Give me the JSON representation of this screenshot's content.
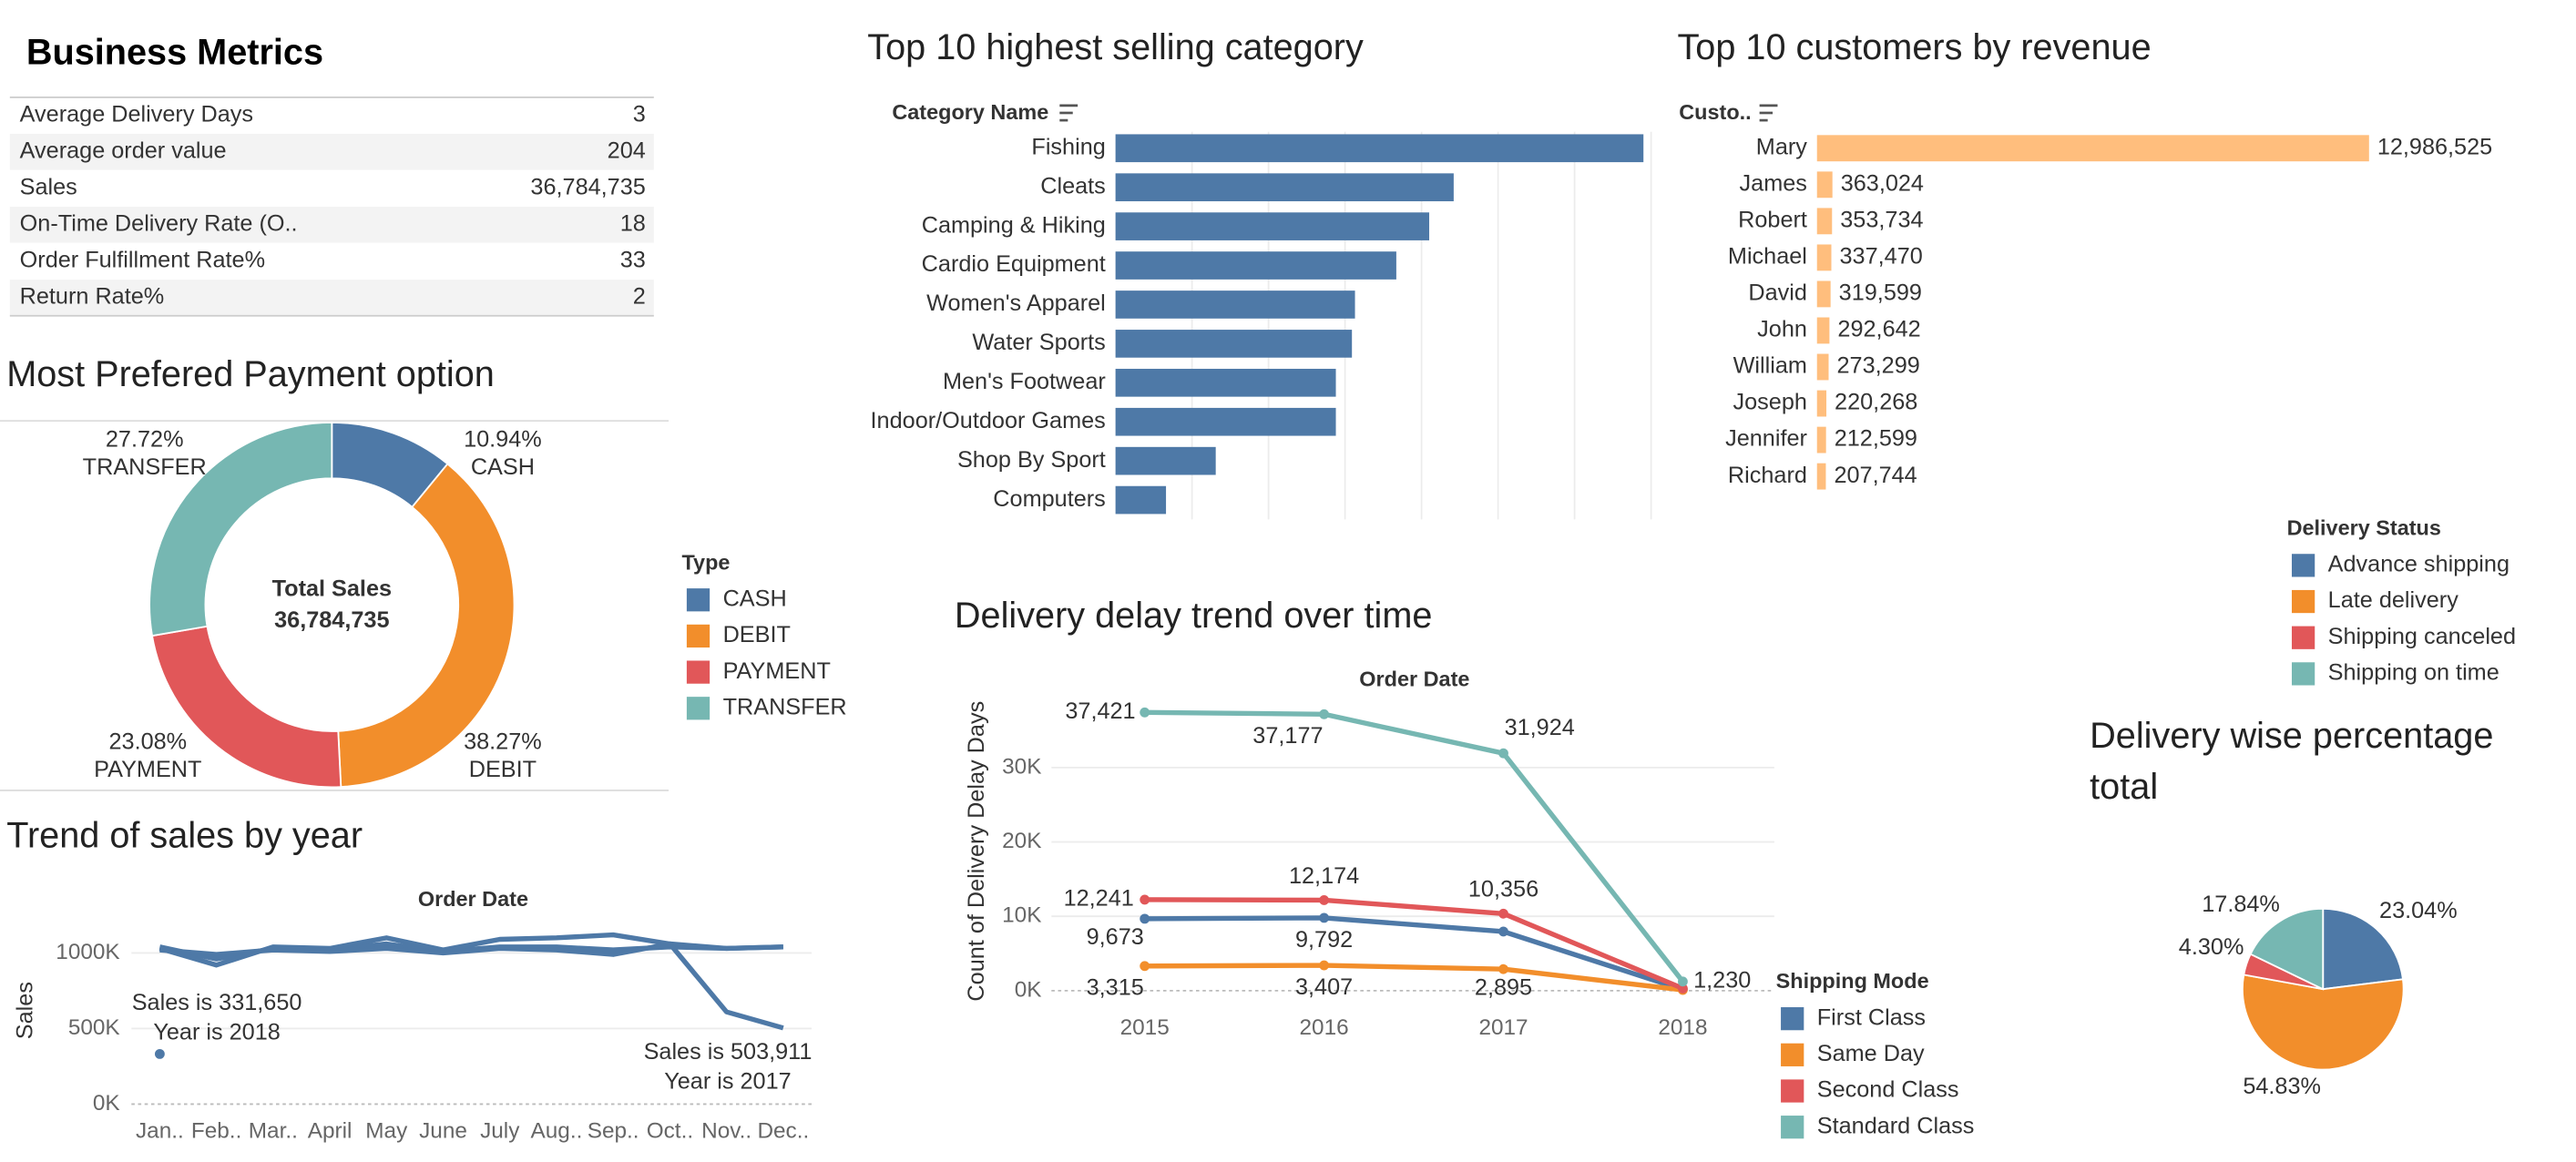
{
  "metrics": {
    "title": "Business Metrics",
    "rows": [
      [
        "Average Delivery Days",
        "3"
      ],
      [
        "Average order value",
        "204"
      ],
      [
        "Sales",
        "36,784,735"
      ],
      [
        "On-Time Delivery Rate (O..",
        "18"
      ],
      [
        "Order Fulfillment Rate%",
        "33"
      ],
      [
        "Return Rate%",
        "2"
      ]
    ]
  },
  "chart_data": [
    {
      "type": "pie",
      "title": "Most Prefered Payment option",
      "categories": [
        "CASH",
        "DEBIT",
        "PAYMENT",
        "TRANSFER"
      ],
      "values": [
        10.94,
        38.27,
        23.08,
        27.72
      ],
      "value_labels": [
        "10.94%",
        "38.27%",
        "23.08%",
        "27.72%"
      ],
      "colors": [
        "#4e79a7",
        "#f28e2b",
        "#e15759",
        "#76b7b2"
      ],
      "donut": true,
      "legend_title": "Type",
      "center_label": "Total Sales",
      "center_value": "36,784,735"
    },
    {
      "type": "line",
      "title": "Trend of sales by year",
      "x_label": "Order Date",
      "y_label": "Sales",
      "categories": [
        "Jan..",
        "Feb..",
        "Mar..",
        "April",
        "May",
        "June",
        "July",
        "Aug..",
        "Sep..",
        "Oct..",
        "Nov..",
        "Dec.."
      ],
      "series": [
        {
          "color": "#4e79a7",
          "values": [
            1040000,
            960000,
            1030000,
            1020000,
            1060000,
            1010000,
            1040000,
            1040000,
            1020000,
            1040000,
            1030000,
            1040000
          ]
        },
        {
          "color": "#4e79a7",
          "values": [
            1030000,
            920000,
            1040000,
            1030000,
            1100000,
            1020000,
            1090000,
            1100000,
            1120000,
            1060000,
            1030000,
            1040000
          ]
        },
        {
          "color": "#4e79a7",
          "values": [
            1020000,
            990000,
            1020000,
            1010000,
            1030000,
            1000000,
            1030000,
            1020000,
            990000,
            1060000,
            610000,
            503911
          ]
        },
        {
          "color": "#4e79a7",
          "values": [
            331650,
            null,
            null,
            null,
            null,
            null,
            null,
            null,
            null,
            null,
            null,
            null
          ]
        }
      ],
      "ylim": [
        -87000,
        1217000
      ],
      "yticks": [
        {
          "value": 0,
          "label": "0K"
        },
        {
          "value": 500000,
          "label": "500K"
        },
        {
          "value": 1000000,
          "label": "1000K"
        }
      ],
      "grid": true,
      "annotations": [
        [
          "Sales is 331,650",
          "Year is 2018"
        ],
        [
          "Sales is 503,911",
          "Year is 2017"
        ]
      ]
    },
    {
      "type": "hbar",
      "title": "Top 10 highest selling category",
      "y_label": "Category Name",
      "categories": [
        "Fishing",
        "Cleats",
        "Camping & Hiking",
        "Cardio Equipment",
        "Women's Apparel",
        "Water Sports",
        "Men's Footwear",
        "Indoor/Outdoor Games",
        "Shop By Sport",
        "Computers"
      ],
      "values": [
        6900000,
        4420000,
        4100000,
        3670000,
        3130000,
        3090000,
        2880000,
        2880000,
        1310000,
        660000
      ],
      "color": "#4e79a7",
      "xlim": [
        0,
        7150000
      ],
      "xticks": [
        1000000,
        2000000,
        3000000,
        4000000,
        5000000,
        6000000,
        7000000
      ],
      "grid": true
    },
    {
      "type": "hbar",
      "title": "Top 10 customers by revenue",
      "y_label": "Custo..",
      "categories": [
        "Mary",
        "James",
        "Robert",
        "Michael",
        "David",
        "John",
        "William",
        "Joseph",
        "Jennifer",
        "Richard"
      ],
      "values": [
        12986525,
        363024,
        353734,
        337470,
        319599,
        292642,
        273299,
        220268,
        212599,
        207744
      ],
      "value_labels": [
        "12,986,525",
        "363,024",
        "353,734",
        "337,470",
        "319,599",
        "292,642",
        "273,299",
        "220,268",
        "212,599",
        "207,744"
      ],
      "color": "#ffbe7d",
      "xlim": [
        0,
        16000000
      ]
    },
    {
      "type": "line",
      "title": "Delivery delay trend over time",
      "x_label": "Order Date",
      "y_label": "Count of Delivery Delay Days",
      "x": [
        2015,
        2016,
        2017,
        2018
      ],
      "xlim": [
        2014.48,
        2018.51
      ],
      "xticks": [
        2015,
        2016,
        2017,
        2018
      ],
      "ylim": [
        -900,
        39300
      ],
      "yticks": [
        {
          "value": 0,
          "label": "0K"
        },
        {
          "value": 10000,
          "label": "10K"
        },
        {
          "value": 20000,
          "label": "20K"
        },
        {
          "value": 30000,
          "label": "30K"
        }
      ],
      "grid": true,
      "markers": true,
      "legend_title": "Shipping Mode",
      "series": [
        {
          "name": "First Class",
          "color": "#4e79a7",
          "values": [
            9673,
            9792,
            7950,
            150
          ],
          "value_labels": [
            "9,673",
            "9,792",
            null,
            null
          ]
        },
        {
          "name": "Same Day",
          "color": "#f28e2b",
          "values": [
            3315,
            3407,
            2895,
            100
          ],
          "value_labels": [
            "3,315",
            "3,407",
            "2,895",
            null
          ]
        },
        {
          "name": "Second Class",
          "color": "#e15759",
          "values": [
            12241,
            12174,
            10356,
            300
          ],
          "value_labels": [
            "12,241",
            "12,174",
            "10,356",
            null
          ]
        },
        {
          "name": "Standard Class",
          "color": "#76b7b2",
          "values": [
            37421,
            37177,
            31924,
            1230
          ],
          "value_labels": [
            "37,421",
            "37,177",
            "31,924",
            "1,230"
          ]
        }
      ]
    },
    {
      "type": "pie",
      "title": "Delivery wise percentage total",
      "categories": [
        "Advance shipping",
        "Late delivery",
        "Shipping canceled",
        "Shipping on time"
      ],
      "values": [
        23.04,
        54.83,
        4.3,
        17.84
      ],
      "value_labels": [
        "23.04%",
        "54.83%",
        "4.30%",
        "17.84%"
      ],
      "colors": [
        "#4e79a7",
        "#f28e2b",
        "#e15759",
        "#76b7b2"
      ],
      "legend_title": "Delivery Status"
    }
  ]
}
